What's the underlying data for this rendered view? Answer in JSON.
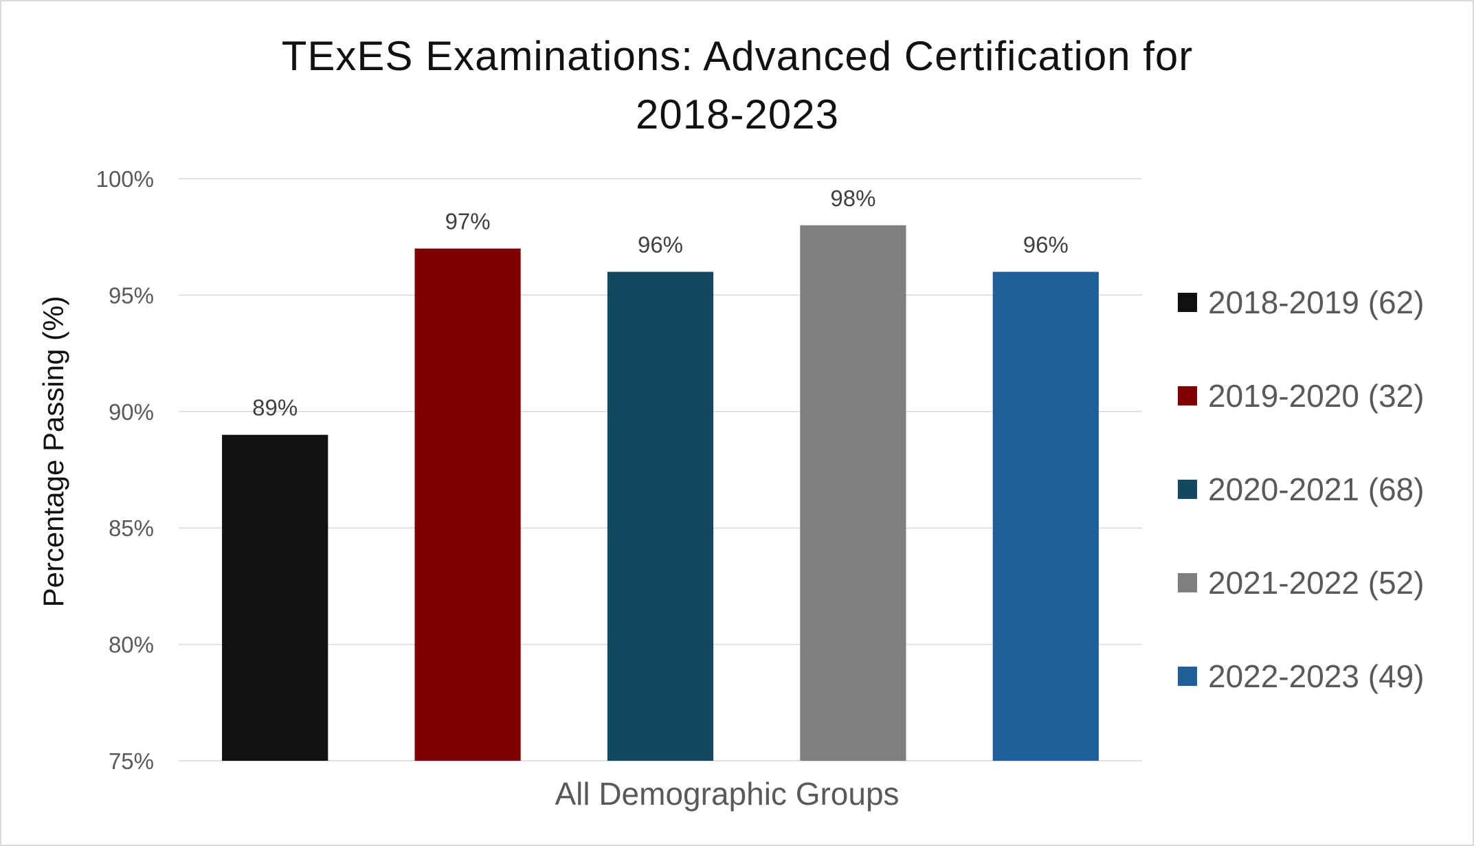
{
  "chart_data": {
    "type": "bar",
    "title_line1": "TExES Examinations: Advanced Certification for",
    "title_line2": "2018-2023",
    "xlabel": "All Demographic Groups",
    "ylabel": "Percentage Passing (%)",
    "ylim": [
      75,
      100
    ],
    "yticks": [
      75,
      80,
      85,
      90,
      95,
      100
    ],
    "ytick_labels": [
      "75%",
      "80%",
      "85%",
      "90%",
      "95%",
      "100%"
    ],
    "grid": true,
    "legend_position": "right",
    "categories": [
      "All Demographic Groups"
    ],
    "series": [
      {
        "name": "2018-2019 (62)",
        "values": [
          89
        ],
        "label": "89%",
        "color": "#111111"
      },
      {
        "name": "2019-2020 (32)",
        "values": [
          97
        ],
        "label": "97%",
        "color": "#7f0000"
      },
      {
        "name": "2020-2021 (68)",
        "values": [
          96
        ],
        "label": "96%",
        "color": "#124862"
      },
      {
        "name": "2021-2022 (52)",
        "values": [
          98
        ],
        "label": "98%",
        "color": "#7f7f7f"
      },
      {
        "name": "2022-2023 (49)",
        "values": [
          96
        ],
        "label": "96%",
        "color": "#215f9a"
      }
    ]
  }
}
